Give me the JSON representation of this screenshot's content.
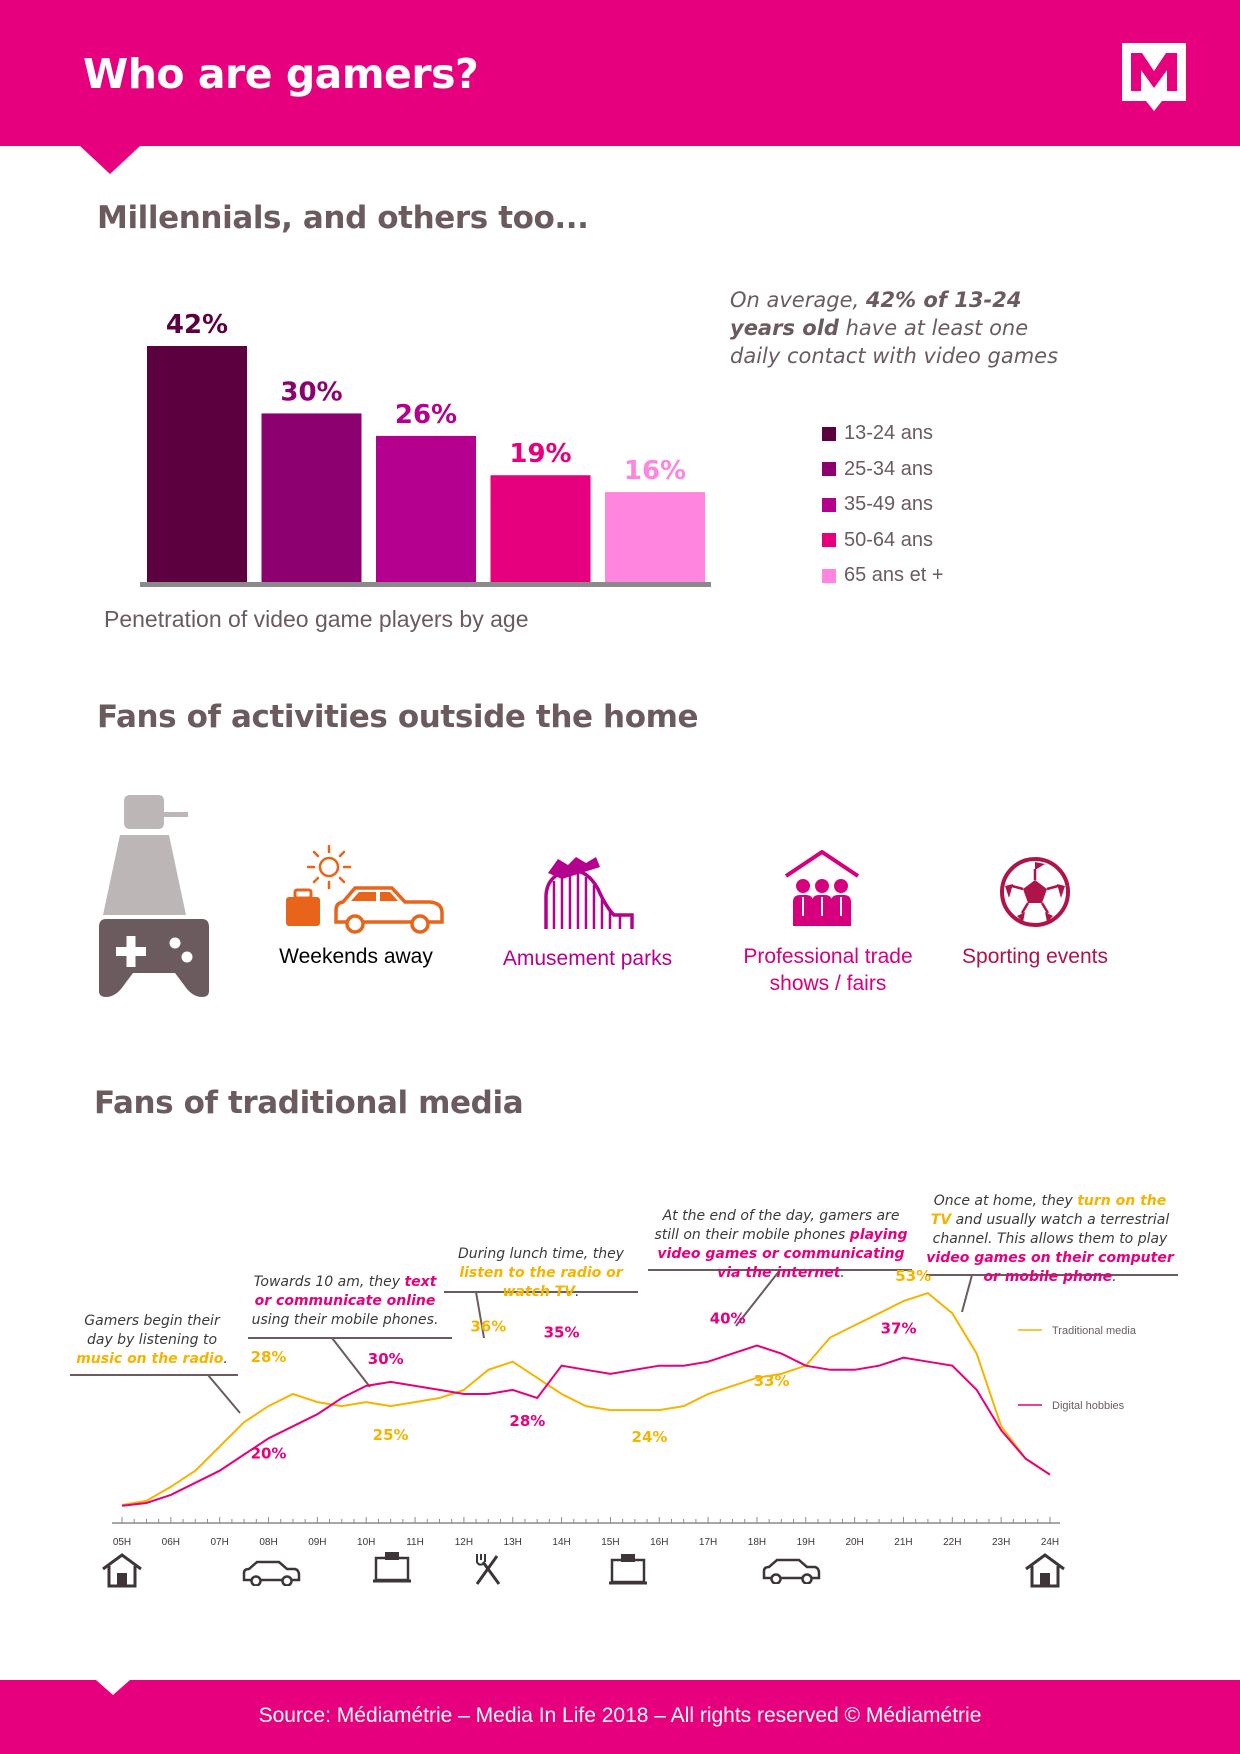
{
  "header": {
    "title": "Who are gamers?",
    "logo_letter": "M"
  },
  "section1": {
    "title": "Millennials, and others too...",
    "note_prefix": "On average, ",
    "note_bold": "42% of 13-24 years old",
    "note_suffix": " have at least one daily contact with video games"
  },
  "section2": {
    "title": "Fans of activities outside the home",
    "activities": [
      {
        "label": "Weekends away",
        "color": "#e8641b",
        "icon": "car-luggage-sun-icon"
      },
      {
        "label": "Amusement parks",
        "color": "#b5008f",
        "icon": "roller-coaster-icon"
      },
      {
        "label": "Professional trade shows / fairs",
        "color": "#d6007e",
        "icon": "people-group-icon"
      },
      {
        "label": "Sporting events",
        "color": "#b0134a",
        "icon": "soccer-ball-icon"
      }
    ]
  },
  "section3": {
    "title": "Fans of traditional media",
    "callouts": {
      "c1_pre": "Gamers begin their day by listening to ",
      "c1_hl": "music on the radio",
      "c1_post": ".",
      "c2_pre": "Towards 10 am, they ",
      "c2_hl": "text or communicate online",
      "c2_post": " using their mobile phones.",
      "c3_pre": "During lunch time, they ",
      "c3_hl": "listen to the radio or watch TV",
      "c3_post": ".",
      "c4_pre": "At the end of the day, gamers are still on their mobile phones ",
      "c4_hl": "playing video games or communicating via the internet",
      "c4_post": ".",
      "c5_pre": "Once at home, they ",
      "c5_hl1": "turn on the TV",
      "c5_mid": " and usually watch a terrestrial channel. This allows them to play ",
      "c5_hl2": "video games on their computer or mobile phone",
      "c5_post": "."
    },
    "timeline_icons": [
      "house-icon",
      "car-icon",
      "computer-icon",
      "cutlery-icon",
      "computer-icon",
      "car-icon",
      "house-icon"
    ]
  },
  "footer": {
    "source": "Source:  Médiamétrie – Media In Life 2018 – All rights reserved © Médiamétrie"
  },
  "chart_data": [
    {
      "type": "bar",
      "title": "",
      "xlabel": "Penetration of video game players by age",
      "categories": [
        "13-24 ans",
        "25-34 ans",
        "35-49 ans",
        "50-64 ans",
        "65 ans et +"
      ],
      "values": [
        42,
        30,
        26,
        19,
        16
      ],
      "labels": [
        "42%",
        "30%",
        "26%",
        "19%",
        "16%"
      ],
      "colors": [
        "#5c0040",
        "#8c0070",
        "#b5008f",
        "#e6007e",
        "#ff85de"
      ],
      "legend": "right",
      "ylim": [
        0,
        42
      ]
    },
    {
      "type": "line",
      "title": "",
      "x_ticks": [
        "05H",
        "06H",
        "07H",
        "08H",
        "09H",
        "10H",
        "11H",
        "12H",
        "13H",
        "14H",
        "15H",
        "16H",
        "17H",
        "18H",
        "19H",
        "20H",
        "21H",
        "22H",
        "23H",
        "24H"
      ],
      "ylim": [
        0,
        55
      ],
      "series": [
        {
          "name": "Traditional media",
          "color": "#f4b400",
          "points": [
            [
              5,
              0.5
            ],
            [
              5.5,
              1.5
            ],
            [
              6,
              5
            ],
            [
              6.5,
              9
            ],
            [
              7,
              15
            ],
            [
              7.5,
              21
            ],
            [
              8,
              25
            ],
            [
              8.5,
              28
            ],
            [
              9,
              26
            ],
            [
              9.5,
              25
            ],
            [
              10,
              26
            ],
            [
              10.5,
              25
            ],
            [
              11,
              26
            ],
            [
              11.5,
              27
            ],
            [
              12,
              29
            ],
            [
              12.5,
              34
            ],
            [
              13,
              36
            ],
            [
              13.5,
              32
            ],
            [
              14,
              28
            ],
            [
              14.5,
              25
            ],
            [
              15,
              24
            ],
            [
              15.5,
              24
            ],
            [
              16,
              24
            ],
            [
              16.5,
              25
            ],
            [
              17,
              28
            ],
            [
              17.5,
              30
            ],
            [
              18,
              32
            ],
            [
              18.5,
              33
            ],
            [
              19,
              35
            ],
            [
              19.5,
              42
            ],
            [
              20,
              45
            ],
            [
              20.5,
              48
            ],
            [
              21,
              51
            ],
            [
              21.5,
              53
            ],
            [
              22,
              48
            ],
            [
              22.5,
              38
            ],
            [
              23,
              20
            ],
            [
              23.5,
              12
            ],
            [
              24,
              8
            ]
          ],
          "labels": [
            {
              "x": 8,
              "y": 28,
              "text": "28%",
              "dx": 0,
              "dy": -32
            },
            {
              "x": 10.5,
              "y": 25,
              "text": "25%",
              "dx": 0,
              "dy": 34
            },
            {
              "x": 12.5,
              "y": 36,
              "text": "36%",
              "dx": 0,
              "dy": -30
            },
            {
              "x": 15.8,
              "y": 24,
              "text": "24%",
              "dx": 0,
              "dy": 32
            },
            {
              "x": 18.3,
              "y": 33,
              "text": "33%",
              "dx": 0,
              "dy": 12
            },
            {
              "x": 21.2,
              "y": 53,
              "text": "53%",
              "dx": 0,
              "dy": -12
            }
          ]
        },
        {
          "name": "Digital hobbies",
          "color": "#e6007e",
          "points": [
            [
              5,
              0.3
            ],
            [
              5.5,
              1
            ],
            [
              6,
              3
            ],
            [
              6.5,
              6
            ],
            [
              7,
              9
            ],
            [
              7.5,
              13
            ],
            [
              8,
              17
            ],
            [
              8.5,
              20
            ],
            [
              9,
              23
            ],
            [
              9.5,
              27
            ],
            [
              10,
              30
            ],
            [
              10.5,
              31
            ],
            [
              11,
              30
            ],
            [
              11.5,
              29
            ],
            [
              12,
              28
            ],
            [
              12.5,
              28
            ],
            [
              13,
              29
            ],
            [
              13.5,
              27
            ],
            [
              14,
              35
            ],
            [
              14.5,
              34
            ],
            [
              15,
              33
            ],
            [
              15.5,
              34
            ],
            [
              16,
              35
            ],
            [
              16.5,
              35
            ],
            [
              17,
              36
            ],
            [
              17.5,
              38
            ],
            [
              18,
              40
            ],
            [
              18.5,
              38
            ],
            [
              19,
              35
            ],
            [
              19.5,
              34
            ],
            [
              20,
              34
            ],
            [
              20.5,
              35
            ],
            [
              21,
              37
            ],
            [
              21.5,
              36
            ],
            [
              22,
              35
            ],
            [
              22.5,
              29
            ],
            [
              23,
              19
            ],
            [
              23.5,
              12
            ],
            [
              24,
              8
            ]
          ],
          "labels": [
            {
              "x": 8,
              "y": 20,
              "text": "20%",
              "dx": 0,
              "dy": 32
            },
            {
              "x": 10.4,
              "y": 30,
              "text": "30%",
              "dx": 0,
              "dy": -22
            },
            {
              "x": 13.3,
              "y": 28,
              "text": "28%",
              "dx": 0,
              "dy": 32
            },
            {
              "x": 14,
              "y": 35,
              "text": "35%",
              "dx": 0,
              "dy": -28
            },
            {
              "x": 17.4,
              "y": 40,
              "text": "40%",
              "dx": 0,
              "dy": -22
            },
            {
              "x": 20.9,
              "y": 37,
              "text": "37%",
              "dx": 0,
              "dy": -24
            }
          ]
        }
      ]
    }
  ]
}
